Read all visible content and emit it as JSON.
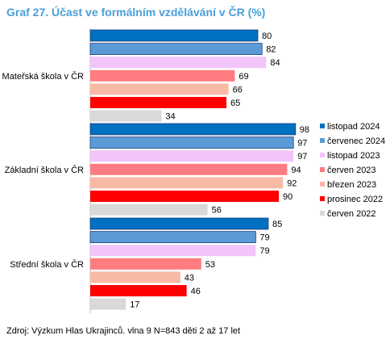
{
  "title": "Graf 27. Účast ve formálním vzdělávání v ČR (%)",
  "source": "Zdroj: Výzkum Hlas Ukrajinců. vlna 9 N=843 děti 2 až 17 let",
  "chart_data": {
    "type": "bar",
    "orientation": "horizontal",
    "categories": [
      "Mateřská škola v ČR",
      "Základní škola v ČR",
      "Střední škola v ČR"
    ],
    "series": [
      {
        "name": "listopad 2024",
        "color": "#0070c0",
        "values": [
          80,
          98,
          85
        ]
      },
      {
        "name": "červenec 2024",
        "color": "#5b9bd5",
        "values": [
          82,
          97,
          79
        ]
      },
      {
        "name": "listopad 2023",
        "color": "#f2c4f9",
        "values": [
          84,
          97,
          79
        ]
      },
      {
        "name": "červen 2023",
        "color": "#ff7c80",
        "values": [
          69,
          94,
          53
        ]
      },
      {
        "name": "březen 2023",
        "color": "#f8b9a5",
        "values": [
          66,
          92,
          43
        ]
      },
      {
        "name": "prosinec 2022",
        "color": "#ff0000",
        "values": [
          65,
          90,
          46
        ]
      },
      {
        "name": "červen 2022",
        "color": "#d9d9d9",
        "values": [
          34,
          56,
          17
        ]
      }
    ],
    "xlim": [
      0,
      100
    ],
    "legend_position": "right",
    "grid": false
  }
}
